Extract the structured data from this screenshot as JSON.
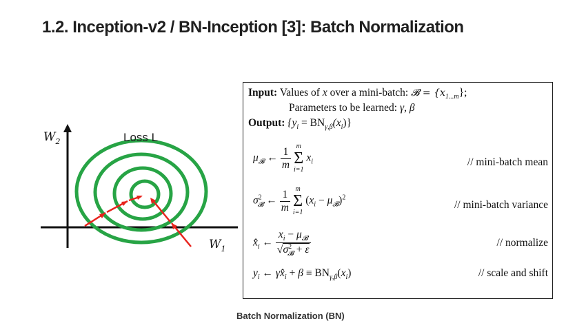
{
  "heading": "1.2. Inception-v2 / BN-Inception [3]: Batch Normalization",
  "diagram": {
    "y_axis_label": "W",
    "y_axis_sub": "2",
    "x_axis_label": "W",
    "x_axis_sub": "1",
    "loss_label": "Loss L",
    "colors": {
      "contour": "#27a445",
      "arrow": "#e8231d",
      "axis": "#111111"
    }
  },
  "algorithm": {
    "input_label": "Input:",
    "input_text_a": "Values of",
    "input_var": "x",
    "input_text_b": "over a mini-batch:",
    "input_set": "𝓑 = {x",
    "input_set_sub": "1...m",
    "input_set_end": "};",
    "params_text": "Parameters to be learned:",
    "params_vars": "γ, β",
    "output_label": "Output:",
    "output_text": "{y",
    "output_text_b": " = BN",
    "output_bn_sub": "γ,β",
    "output_text_c": "(x",
    "output_text_d": ")}",
    "comments": {
      "mean": "// mini-batch mean",
      "variance": "// mini-batch variance",
      "normalize": "// normalize",
      "scale": "// scale and shift"
    }
  },
  "caption": "Batch Normalization (BN)"
}
